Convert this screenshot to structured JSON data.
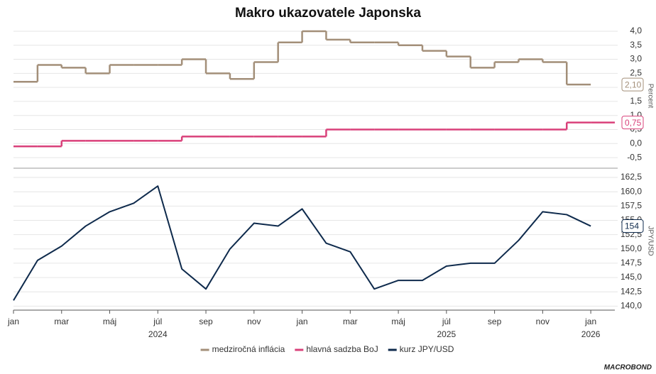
{
  "chart_data": [
    {
      "type": "step",
      "title": "Makro ukazovatele Japonska",
      "y_label": "Percent",
      "x": [
        "2024-01",
        "2024-02",
        "2024-03",
        "2024-04",
        "2024-05",
        "2024-06",
        "2024-07",
        "2024-08",
        "2024-09",
        "2024-10",
        "2024-11",
        "2024-12",
        "2025-01",
        "2025-02",
        "2025-03",
        "2025-04",
        "2025-05",
        "2025-06",
        "2025-07",
        "2025-08",
        "2025-09",
        "2025-10",
        "2025-11",
        "2025-12",
        "2026-01"
      ],
      "xlim": [
        "2024-01",
        "2026-02"
      ],
      "series": [
        {
          "name": "medziročná inflácia",
          "color": "#a38f79",
          "end_label": "2,10",
          "values": [
            2.2,
            2.8,
            2.7,
            2.5,
            2.8,
            2.8,
            2.8,
            3.0,
            2.5,
            2.3,
            2.9,
            3.6,
            4.0,
            3.7,
            3.6,
            3.6,
            3.5,
            3.3,
            3.1,
            2.7,
            2.9,
            3.0,
            2.9,
            2.1,
            null
          ]
        },
        {
          "name": "hlavná sadzba BoJ",
          "color": "#d9407a",
          "end_label": "0,75",
          "values": [
            -0.1,
            -0.1,
            0.1,
            0.1,
            0.1,
            0.1,
            0.1,
            0.25,
            0.25,
            0.25,
            0.25,
            0.25,
            0.25,
            0.5,
            0.5,
            0.5,
            0.5,
            0.5,
            0.5,
            0.5,
            0.5,
            0.5,
            0.5,
            0.75,
            0.75
          ]
        }
      ],
      "ylim": [
        -0.75,
        4.15
      ],
      "yticks": [
        {
          "value": 4.0,
          "label": "4,0"
        },
        {
          "value": 3.5,
          "label": "3,5"
        },
        {
          "value": 3.0,
          "label": "3,0"
        },
        {
          "value": 2.5,
          "label": "2,5"
        },
        {
          "value": 2.0,
          "label": "2,0"
        },
        {
          "value": 1.5,
          "label": "1,5"
        },
        {
          "value": 1.0,
          "label": "1,0"
        },
        {
          "value": 0.5,
          "label": "0,5"
        },
        {
          "value": 0.0,
          "label": "0,0"
        },
        {
          "value": -0.5,
          "label": "-0,5"
        }
      ],
      "grid": true
    },
    {
      "type": "line",
      "y_label": "JPY/USD",
      "source": "MACROBOND",
      "x": [
        "2024-01",
        "2024-02",
        "2024-03",
        "2024-04",
        "2024-05",
        "2024-06",
        "2024-07",
        "2024-08",
        "2024-09",
        "2024-10",
        "2024-11",
        "2024-12",
        "2025-01",
        "2025-02",
        "2025-03",
        "2025-04",
        "2025-05",
        "2025-06",
        "2025-07",
        "2025-08",
        "2025-09",
        "2025-10",
        "2025-11",
        "2025-12",
        "2026-01"
      ],
      "xlim": [
        "2024-01",
        "2026-02"
      ],
      "series": [
        {
          "name": "kurz JPY/USD",
          "color": "#0e2a4c",
          "end_label": "154",
          "values": [
            141,
            148,
            150.5,
            154,
            156.5,
            158,
            161,
            146.5,
            143,
            150,
            154.5,
            154,
            157,
            151,
            149.5,
            143,
            144.5,
            144.5,
            147,
            147.5,
            147.5,
            151.5,
            156.5,
            156,
            154
          ]
        }
      ],
      "ylim": [
        139.3,
        163.5
      ],
      "yticks": [
        {
          "value": 162.5,
          "label": "162,5"
        },
        {
          "value": 160.0,
          "label": "160,0"
        },
        {
          "value": 157.5,
          "label": "157,5"
        },
        {
          "value": 155.0,
          "label": "155,0"
        },
        {
          "value": 152.5,
          "label": "152,5"
        },
        {
          "value": 150.0,
          "label": "150,0"
        },
        {
          "value": 147.5,
          "label": "147,5"
        },
        {
          "value": 145.0,
          "label": "145,0"
        },
        {
          "value": 142.5,
          "label": "142,5"
        },
        {
          "value": 140.0,
          "label": "140,0"
        }
      ],
      "xticks": [
        {
          "value": "2024-01",
          "label": "jan"
        },
        {
          "value": "2024-03",
          "label": "mar"
        },
        {
          "value": "2024-05",
          "label": "máj"
        },
        {
          "value": "2024-07",
          "label": "júl"
        },
        {
          "value": "2024-09",
          "label": "sep"
        },
        {
          "value": "2024-11",
          "label": "nov"
        },
        {
          "value": "2025-01",
          "label": "jan"
        },
        {
          "value": "2025-03",
          "label": "mar"
        },
        {
          "value": "2025-05",
          "label": "máj"
        },
        {
          "value": "2025-07",
          "label": "júl"
        },
        {
          "value": "2025-09",
          "label": "sep"
        },
        {
          "value": "2025-11",
          "label": "nov"
        },
        {
          "value": "2026-01",
          "label": "jan"
        }
      ],
      "year_labels": [
        {
          "value": "2024-07",
          "label": "2024"
        },
        {
          "value": "2025-07",
          "label": "2025"
        },
        {
          "value": "2026-01",
          "label": "2026"
        }
      ],
      "grid": true
    }
  ]
}
